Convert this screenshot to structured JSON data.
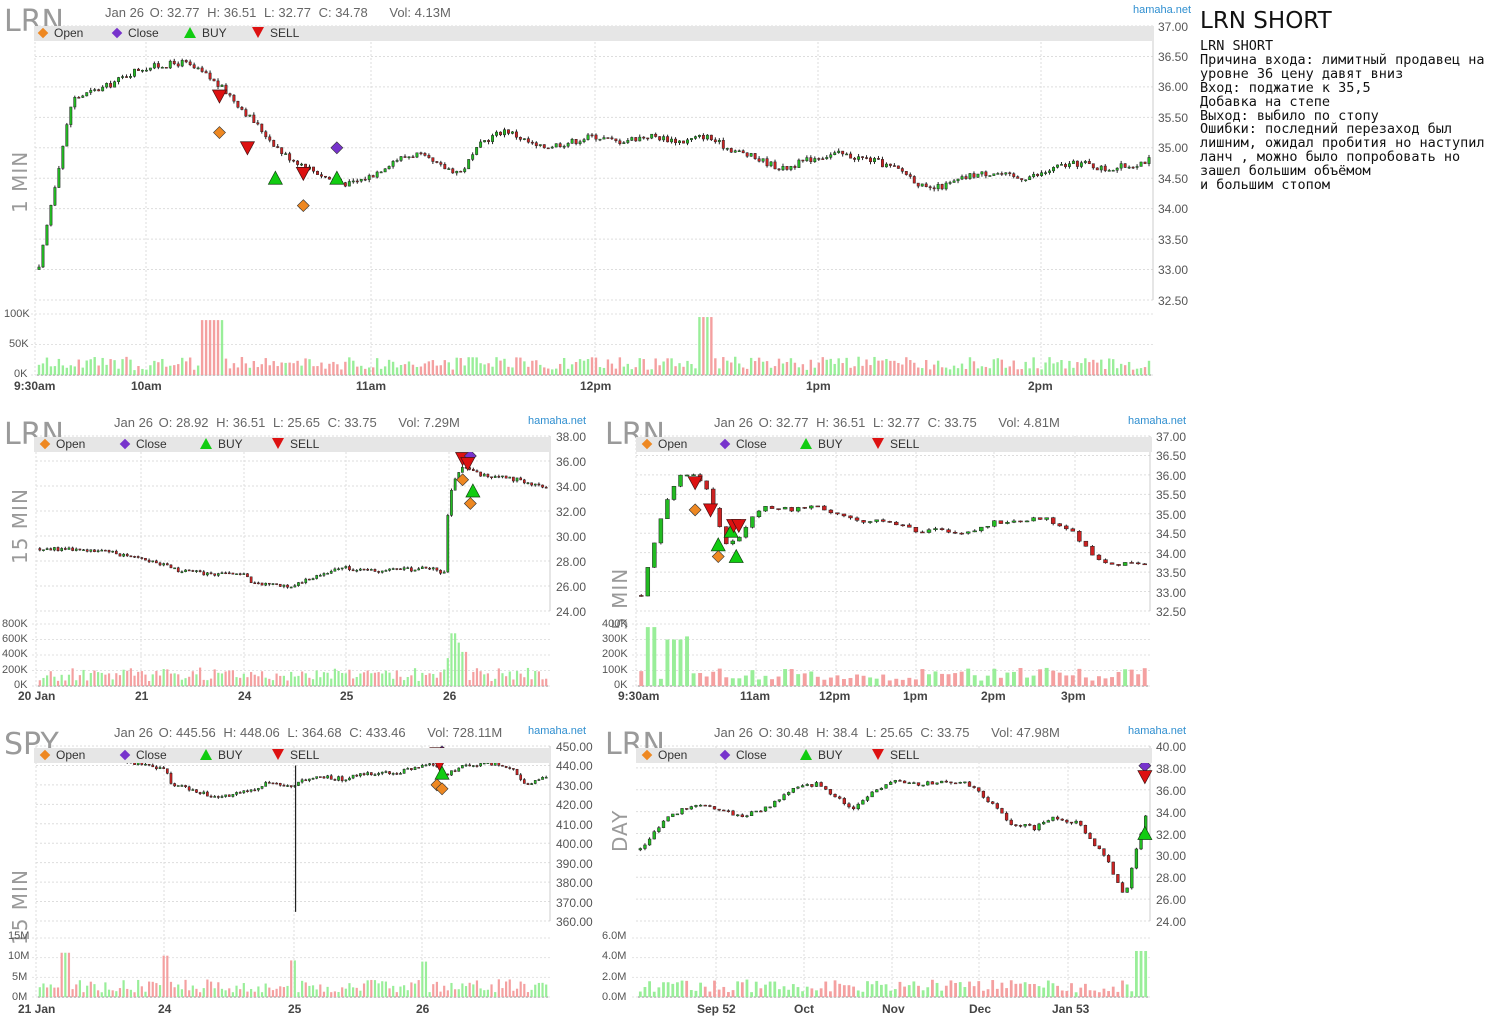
{
  "notes": {
    "title": "LRN SHORT",
    "lines": [
      "LRN SHORT",
      "Причина входа: лимитный продавец на уровне 36 цену давят вниз",
      "Вход: поджатие к 35,5",
      "Добавка на степе",
      "Выход: выбило по стопу",
      "Ошибки: последний перезаход был лишним, ожидал пробития но наступил ланч , можно было попробовать но зашел большим объёмом",
      "и большим стопом"
    ]
  },
  "legend": {
    "open": "Open",
    "close": "Close",
    "buy": "BUY",
    "sell": "SELL"
  },
  "colors": {
    "up": "#22bb22",
    "down": "#cc2222",
    "open_marker": "#ee8822",
    "close_marker": "#7733cc",
    "buy_marker": "#11cc11",
    "sell_marker": "#dd1111",
    "vol_up": "#99ee99",
    "vol_down": "#f4a0a0",
    "brand": "#2f8fd0"
  },
  "chart_data": [
    {
      "id": "p1m",
      "type": "candlestick",
      "ticker": "LRN",
      "timeframe": "1 MIN",
      "info": {
        "date": "Jan 26",
        "o": "O: 32.77",
        "h": "H: 36.51",
        "l": "L: 32.77",
        "c": "C: 34.78",
        "vol": "Vol: 4.13M"
      },
      "brand": "hamaha.net",
      "ylim": [
        32.5,
        37.0
      ],
      "yticks": [
        "37.00",
        "36.50",
        "36.00",
        "35.50",
        "35.00",
        "34.50",
        "34.00",
        "33.50",
        "33.00",
        "32.50"
      ],
      "vol_ticks": [
        "100K",
        "50K",
        "0K"
      ],
      "xticks": [
        "9:30am",
        "10am",
        "11am",
        "12pm",
        "1pm",
        "2pm"
      ],
      "path": [
        [
          0,
          33.0
        ],
        [
          0.01,
          34.0
        ],
        [
          0.03,
          35.8
        ],
        [
          0.06,
          36.0
        ],
        [
          0.09,
          36.3
        ],
        [
          0.13,
          36.4
        ],
        [
          0.15,
          36.2
        ],
        [
          0.17,
          35.9
        ],
        [
          0.2,
          35.3
        ],
        [
          0.22,
          34.9
        ],
        [
          0.24,
          34.7
        ],
        [
          0.26,
          34.5
        ],
        [
          0.28,
          34.4
        ],
        [
          0.3,
          34.55
        ],
        [
          0.32,
          34.8
        ],
        [
          0.34,
          34.9
        ],
        [
          0.36,
          34.7
        ],
        [
          0.38,
          34.6
        ],
        [
          0.4,
          35.1
        ],
        [
          0.42,
          35.3
        ],
        [
          0.45,
          35.0
        ],
        [
          0.48,
          35.1
        ],
        [
          0.5,
          35.2
        ],
        [
          0.52,
          35.1
        ],
        [
          0.55,
          35.2
        ],
        [
          0.58,
          35.1
        ],
        [
          0.6,
          35.2
        ],
        [
          0.62,
          35.0
        ],
        [
          0.65,
          34.8
        ],
        [
          0.67,
          34.65
        ],
        [
          0.7,
          34.85
        ],
        [
          0.72,
          34.9
        ],
        [
          0.75,
          34.8
        ],
        [
          0.78,
          34.6
        ],
        [
          0.8,
          34.3
        ],
        [
          0.82,
          34.4
        ],
        [
          0.84,
          34.55
        ],
        [
          0.86,
          34.6
        ],
        [
          0.88,
          34.5
        ],
        [
          0.9,
          34.55
        ],
        [
          0.92,
          34.7
        ],
        [
          0.94,
          34.75
        ],
        [
          0.96,
          34.65
        ],
        [
          0.98,
          34.7
        ],
        [
          1.0,
          34.8
        ]
      ],
      "n": 280,
      "vol_spikes": [
        [
          0.6,
          95
        ],
        [
          0.15,
          90
        ],
        [
          0.16,
          90
        ]
      ],
      "markers": [
        {
          "kind": "sell",
          "x": 0.165,
          "y": 35.85
        },
        {
          "kind": "open",
          "x": 0.165,
          "y": 35.25
        },
        {
          "kind": "sell",
          "x": 0.19,
          "y": 35.0
        },
        {
          "kind": "buy",
          "x": 0.215,
          "y": 34.5
        },
        {
          "kind": "sell",
          "x": 0.24,
          "y": 34.58
        },
        {
          "kind": "open",
          "x": 0.24,
          "y": 34.05
        },
        {
          "kind": "close",
          "x": 0.27,
          "y": 35.0
        },
        {
          "kind": "buy",
          "x": 0.27,
          "y": 34.5
        }
      ]
    },
    {
      "id": "p15m",
      "type": "candlestick",
      "ticker": "LRN",
      "timeframe": "15 MIN",
      "info": {
        "date": "Jan 26",
        "o": "O: 28.92",
        "h": "H: 36.51",
        "l": "L: 25.65",
        "c": "C: 33.75",
        "vol": "Vol: 7.29M"
      },
      "brand": "hamaha.net",
      "ylim": [
        24.0,
        38.0
      ],
      "yticks": [
        "38.00",
        "36.00",
        "34.00",
        "32.00",
        "30.00",
        "28.00",
        "26.00",
        "24.00"
      ],
      "vol_ticks": [
        "800K",
        "600K",
        "400K",
        "200K",
        "0K"
      ],
      "xticks": [
        "20 Jan",
        "21",
        "24",
        "25",
        "26"
      ],
      "path": [
        [
          0,
          29.0
        ],
        [
          0.1,
          28.9
        ],
        [
          0.2,
          28.3
        ],
        [
          0.28,
          27.2
        ],
        [
          0.35,
          26.9
        ],
        [
          0.4,
          27.0
        ],
        [
          0.42,
          26.2
        ],
        [
          0.5,
          26.0
        ],
        [
          0.55,
          26.9
        ],
        [
          0.6,
          27.5
        ],
        [
          0.65,
          27.2
        ],
        [
          0.7,
          27.3
        ],
        [
          0.77,
          27.4
        ],
        [
          0.805,
          27.0
        ],
        [
          0.806,
          33.0
        ],
        [
          0.83,
          35.5
        ],
        [
          0.86,
          35.0
        ],
        [
          0.9,
          34.7
        ],
        [
          0.95,
          34.5
        ],
        [
          1.0,
          33.8
        ]
      ],
      "n": 140,
      "vol_spikes": [
        [
          0.81,
          45
        ],
        [
          0.82,
          85
        ],
        [
          0.83,
          70
        ],
        [
          0.84,
          55
        ]
      ],
      "markers": [
        {
          "kind": "sell",
          "x": 0.83,
          "y": 36.2
        },
        {
          "kind": "close",
          "x": 0.845,
          "y": 36.4
        },
        {
          "kind": "sell",
          "x": 0.84,
          "y": 35.8
        },
        {
          "kind": "open",
          "x": 0.83,
          "y": 34.5
        },
        {
          "kind": "buy",
          "x": 0.85,
          "y": 33.6
        },
        {
          "kind": "open",
          "x": 0.845,
          "y": 32.6
        }
      ]
    },
    {
      "id": "p5m",
      "type": "candlestick",
      "ticker": "LRN",
      "timeframe": "5 MIN",
      "info": {
        "date": "Jan 26",
        "o": "O: 32.77",
        "h": "H: 36.51",
        "l": "L: 32.77",
        "c": "C: 33.75",
        "vol": "Vol: 4.81M"
      },
      "brand": "hamaha.net",
      "ylim": [
        32.5,
        37.0
      ],
      "yticks": [
        "37.00",
        "36.50",
        "36.00",
        "35.50",
        "35.00",
        "34.50",
        "34.00",
        "33.50",
        "33.00",
        "32.50"
      ],
      "vol_ticks": [
        "400K",
        "300K",
        "200K",
        "100K",
        "0K"
      ],
      "xticks": [
        "9:30am",
        "11am",
        "12pm",
        "1pm",
        "2pm",
        "3pm"
      ],
      "path": [
        [
          0,
          32.9
        ],
        [
          0.02,
          34.0
        ],
        [
          0.05,
          35.3
        ],
        [
          0.07,
          35.9
        ],
        [
          0.1,
          36.1
        ],
        [
          0.13,
          35.6
        ],
        [
          0.15,
          34.9
        ],
        [
          0.17,
          34.2
        ],
        [
          0.2,
          34.5
        ],
        [
          0.22,
          34.9
        ],
        [
          0.25,
          35.2
        ],
        [
          0.3,
          35.1
        ],
        [
          0.35,
          35.2
        ],
        [
          0.4,
          34.9
        ],
        [
          0.45,
          34.8
        ],
        [
          0.5,
          34.8
        ],
        [
          0.55,
          34.5
        ],
        [
          0.6,
          34.6
        ],
        [
          0.65,
          34.5
        ],
        [
          0.7,
          34.8
        ],
        [
          0.75,
          34.8
        ],
        [
          0.8,
          34.9
        ],
        [
          0.85,
          34.6
        ],
        [
          0.88,
          34.2
        ],
        [
          0.91,
          33.8
        ],
        [
          0.95,
          33.7
        ],
        [
          1.0,
          33.7
        ]
      ],
      "n": 78,
      "vol_spikes": [
        [
          0.02,
          95
        ],
        [
          0.05,
          75
        ],
        [
          0.07,
          75
        ],
        [
          0.09,
          80
        ]
      ],
      "markers": [
        {
          "kind": "sell",
          "x": 0.115,
          "y": 35.8
        },
        {
          "kind": "sell",
          "x": 0.145,
          "y": 35.1
        },
        {
          "kind": "open",
          "x": 0.115,
          "y": 35.1
        },
        {
          "kind": "buy",
          "x": 0.16,
          "y": 34.2
        },
        {
          "kind": "open",
          "x": 0.16,
          "y": 33.9
        },
        {
          "kind": "buy",
          "x": 0.185,
          "y": 34.55
        },
        {
          "kind": "buy",
          "x": 0.195,
          "y": 33.9
        },
        {
          "kind": "sell",
          "x": 0.19,
          "y": 34.7
        },
        {
          "kind": "sell",
          "x": 0.2,
          "y": 34.7
        }
      ]
    },
    {
      "id": "pspy",
      "type": "candlestick",
      "ticker": "SPY",
      "timeframe": "15 MIN",
      "info": {
        "date": "Jan 26",
        "o": "O: 445.56",
        "h": "H: 448.06",
        "l": "L: 364.68",
        "c": "C: 433.46",
        "vol": "Vol: 728.11M"
      },
      "brand": "hamaha.net",
      "ylim": [
        360.0,
        450.0
      ],
      "yticks": [
        "450.00",
        "440.00",
        "430.00",
        "420.00",
        "410.00",
        "400.00",
        "390.00",
        "380.00",
        "370.00",
        "360.00"
      ],
      "vol_ticks": [
        "15M",
        "10M",
        "5M",
        "0M"
      ],
      "xticks": [
        "21 Jan",
        "24",
        "25",
        "26"
      ],
      "path": [
        [
          0,
          446
        ],
        [
          0.1,
          444
        ],
        [
          0.2,
          441
        ],
        [
          0.25,
          438
        ],
        [
          0.26,
          430
        ],
        [
          0.3,
          428
        ],
        [
          0.35,
          423
        ],
        [
          0.4,
          426
        ],
        [
          0.45,
          431
        ],
        [
          0.5,
          428
        ],
        [
          0.51,
          431
        ],
        [
          0.55,
          434
        ],
        [
          0.6,
          433
        ],
        [
          0.65,
          436
        ],
        [
          0.7,
          436
        ],
        [
          0.75,
          439
        ],
        [
          0.78,
          441
        ],
        [
          0.8,
          434
        ],
        [
          0.82,
          438
        ],
        [
          0.85,
          440
        ],
        [
          0.9,
          441
        ],
        [
          0.93,
          439
        ],
        [
          0.96,
          430
        ],
        [
          1.0,
          434
        ]
      ],
      "n": 140,
      "vol_spikes": [
        [
          0.25,
          70
        ],
        [
          0.5,
          62
        ],
        [
          0.76,
          60
        ],
        [
          0.05,
          75
        ]
      ],
      "spike_down": {
        "x": 0.505,
        "low": 364.68
      },
      "markers": [
        {
          "kind": "close",
          "x": 0.79,
          "y": 447
        },
        {
          "kind": "sell",
          "x": 0.78,
          "y": 446
        },
        {
          "kind": "sell",
          "x": 0.785,
          "y": 441
        },
        {
          "kind": "buy",
          "x": 0.79,
          "y": 436
        },
        {
          "kind": "open",
          "x": 0.78,
          "y": 430
        },
        {
          "kind": "open",
          "x": 0.79,
          "y": 428
        }
      ]
    },
    {
      "id": "pday",
      "type": "candlestick",
      "ticker": "LRN",
      "timeframe": "DAY",
      "info": {
        "date": "Jan 26",
        "o": "O: 30.48",
        "h": "H: 38.4",
        "l": "L: 25.65",
        "c": "C: 33.75",
        "vol": "Vol: 47.98M"
      },
      "brand": "hamaha.net",
      "ylim": [
        24.0,
        40.0
      ],
      "yticks": [
        "40.00",
        "38.00",
        "36.00",
        "34.00",
        "32.00",
        "30.00",
        "28.00",
        "26.00",
        "24.00"
      ],
      "vol_ticks": [
        "6.0M",
        "4.0M",
        "2.0M",
        "0.0M"
      ],
      "xticks": [
        "Sep 52",
        "Oct",
        "Nov",
        "Dec",
        "Jan 53"
      ],
      "path": [
        [
          0,
          30.5
        ],
        [
          0.05,
          33.5
        ],
        [
          0.1,
          34.5
        ],
        [
          0.15,
          34.3
        ],
        [
          0.2,
          33.5
        ],
        [
          0.25,
          34.3
        ],
        [
          0.3,
          36.0
        ],
        [
          0.35,
          36.5
        ],
        [
          0.4,
          35.0
        ],
        [
          0.42,
          34.0
        ],
        [
          0.45,
          35.5
        ],
        [
          0.5,
          37.0
        ],
        [
          0.55,
          36.5
        ],
        [
          0.6,
          36.8
        ],
        [
          0.65,
          36.5
        ],
        [
          0.7,
          34.5
        ],
        [
          0.73,
          33.0
        ],
        [
          0.78,
          32.5
        ],
        [
          0.82,
          33.5
        ],
        [
          0.86,
          33.0
        ],
        [
          0.87,
          32.8
        ],
        [
          0.9,
          31.0
        ],
        [
          0.93,
          29.0
        ],
        [
          0.95,
          27.0
        ],
        [
          0.96,
          26.5
        ],
        [
          1.0,
          33.7
        ]
      ],
      "n": 110,
      "vol_spikes": [
        [
          0.99,
          78
        ],
        [
          0.05,
          25
        ],
        [
          0.41,
          20
        ]
      ],
      "markers": [
        {
          "kind": "close",
          "x": 0.99,
          "y": 38.2
        },
        {
          "kind": "sell",
          "x": 0.99,
          "y": 37.2
        },
        {
          "kind": "buy",
          "x": 0.99,
          "y": 32.0
        }
      ]
    }
  ]
}
